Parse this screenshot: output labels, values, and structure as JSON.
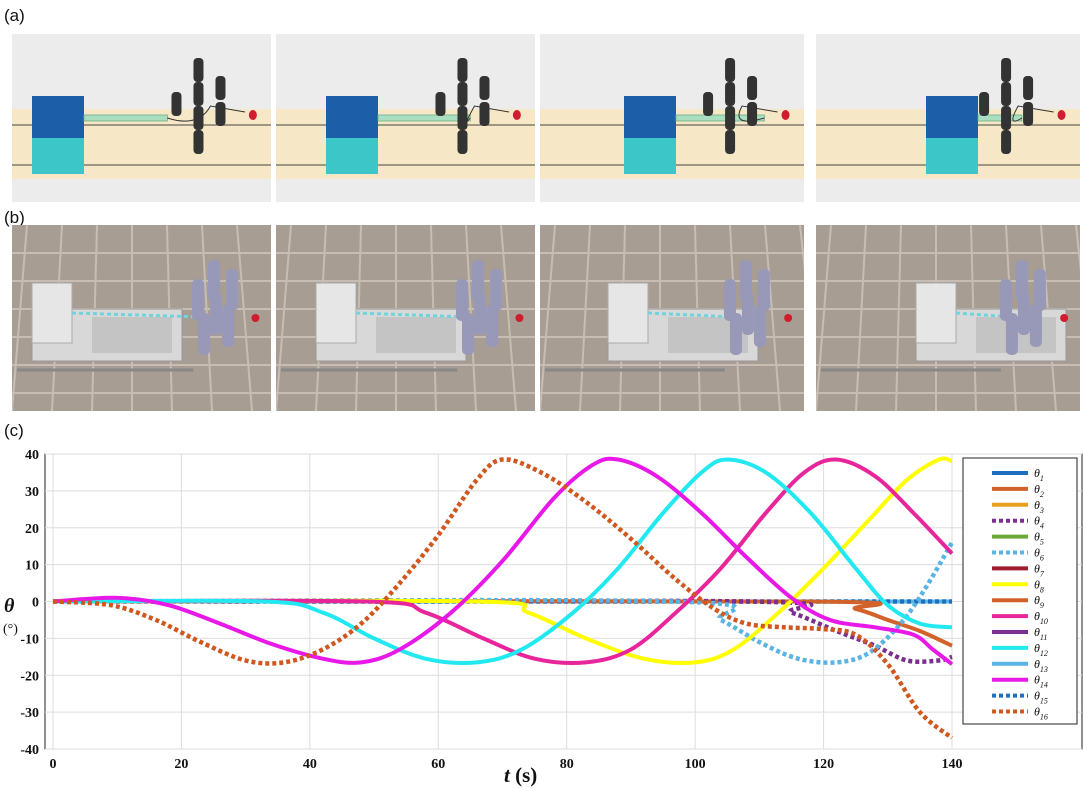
{
  "panels": {
    "a": "(a)",
    "b": "(b)",
    "c": "(c)"
  },
  "colors": {
    "sand": "#f6e7c6",
    "block_blue": "#1c5fa8",
    "block_cyan": "#3cc6c8",
    "pillar": "#333333",
    "ball": "#d01c2c",
    "segment_green": "#a9dfc0",
    "floor": "#a89d93"
  },
  "chart_data": {
    "type": "line",
    "title": "",
    "xlabel": "t (s)",
    "ylabel": "θ",
    "yunit": "(°)",
    "xlim": [
      0,
      155
    ],
    "ylim": [
      -40,
      40
    ],
    "xticks": [
      0,
      20,
      40,
      60,
      80,
      100,
      120,
      140
    ],
    "yticks": [
      40,
      30,
      20,
      10,
      0,
      -10,
      -20,
      -30,
      -40
    ],
    "grid": true,
    "legend_position": "right",
    "series": [
      {
        "name": "θ1",
        "color": "#1f6fbf",
        "style": "solid",
        "points": [
          [
            0,
            0
          ],
          [
            140,
            0
          ]
        ]
      },
      {
        "name": "θ2",
        "color": "#d2612a",
        "style": "solid",
        "points": [
          [
            0,
            0
          ],
          [
            118,
            0
          ],
          [
            125,
            -2
          ],
          [
            130,
            -5
          ],
          [
            135,
            -8
          ],
          [
            140,
            -12
          ]
        ]
      },
      {
        "name": "θ3",
        "color": "#e8a020",
        "style": "solid",
        "points": [
          [
            0,
            0
          ],
          [
            140,
            0
          ]
        ]
      },
      {
        "name": "θ4",
        "color": "#7b2f8f",
        "style": "dotted",
        "points": [
          [
            0,
            0
          ],
          [
            108,
            0
          ],
          [
            115,
            -3
          ],
          [
            122,
            -8
          ],
          [
            128,
            -12
          ],
          [
            133,
            -16
          ],
          [
            138,
            -16
          ],
          [
            140,
            -15
          ]
        ]
      },
      {
        "name": "θ5",
        "color": "#6aa83a",
        "style": "solid",
        "points": [
          [
            0,
            0
          ],
          [
            140,
            0
          ]
        ]
      },
      {
        "name": "θ6",
        "color": "#5ab4e4",
        "style": "dotted",
        "points": [
          [
            0,
            0
          ],
          [
            97,
            0
          ],
          [
            104,
            -5
          ],
          [
            110,
            -11
          ],
          [
            116,
            -15.5
          ],
          [
            122,
            -16.5
          ],
          [
            127,
            -14
          ],
          [
            132,
            -6
          ],
          [
            136,
            4
          ],
          [
            140,
            16
          ]
        ]
      },
      {
        "name": "θ7",
        "color": "#a01c2c",
        "style": "solid",
        "points": [
          [
            0,
            0
          ],
          [
            140,
            0
          ]
        ]
      },
      {
        "name": "θ8",
        "color": "#ffff00",
        "style": "solid",
        "points": [
          [
            0,
            0
          ],
          [
            66,
            0
          ],
          [
            74,
            -3
          ],
          [
            83,
            -10
          ],
          [
            92,
            -15.5
          ],
          [
            100,
            -16.5
          ],
          [
            106,
            -13
          ],
          [
            113,
            -3
          ],
          [
            120,
            9
          ],
          [
            127,
            22
          ],
          [
            133,
            33
          ],
          [
            138,
            38.5
          ],
          [
            140,
            38
          ]
        ]
      },
      {
        "name": "θ9",
        "color": "#d2612a",
        "style": "solid",
        "points": [
          [
            0,
            0
          ],
          [
            140,
            0
          ]
        ]
      },
      {
        "name": "θ10",
        "color": "#e8259a",
        "style": "solid",
        "points": [
          [
            0,
            0
          ],
          [
            49,
            0
          ],
          [
            58,
            -3
          ],
          [
            67,
            -10
          ],
          [
            75,
            -15.5
          ],
          [
            83,
            -16.5
          ],
          [
            90,
            -13
          ],
          [
            97,
            -3
          ],
          [
            104,
            9
          ],
          [
            111,
            24
          ],
          [
            117,
            35
          ],
          [
            122,
            38.5
          ],
          [
            128,
            34
          ],
          [
            134,
            24
          ],
          [
            140,
            13
          ]
        ]
      },
      {
        "name": "θ11",
        "color": "#7b2f8f",
        "style": "solid",
        "points": [
          [
            0,
            0
          ],
          [
            140,
            0
          ]
        ]
      },
      {
        "name": "θ12",
        "color": "#22e8f0",
        "style": "solid",
        "points": [
          [
            0,
            0
          ],
          [
            33,
            0
          ],
          [
            42,
            -3
          ],
          [
            50,
            -10
          ],
          [
            58,
            -15.5
          ],
          [
            66,
            -16.5
          ],
          [
            73,
            -13
          ],
          [
            81,
            -3
          ],
          [
            88,
            9
          ],
          [
            95,
            24
          ],
          [
            101,
            35
          ],
          [
            105,
            38.5
          ],
          [
            111,
            35
          ],
          [
            118,
            24
          ],
          [
            125,
            9
          ],
          [
            130,
            -1
          ],
          [
            135,
            -6
          ],
          [
            140,
            -7
          ]
        ]
      },
      {
        "name": "θ13",
        "color": "#5ab4e4",
        "style": "solid",
        "points": [
          [
            0,
            0
          ],
          [
            140,
            0
          ]
        ]
      },
      {
        "name": "θ14",
        "color": "#e818e8",
        "style": "solid",
        "points": [
          [
            0,
            0
          ],
          [
            10,
            1
          ],
          [
            18,
            -1
          ],
          [
            26,
            -6
          ],
          [
            34,
            -11.5
          ],
          [
            42,
            -15.5
          ],
          [
            48,
            -16.5
          ],
          [
            54,
            -13
          ],
          [
            62,
            -3
          ],
          [
            70,
            11
          ],
          [
            78,
            28
          ],
          [
            84,
            37
          ],
          [
            88,
            38.5
          ],
          [
            94,
            34
          ],
          [
            101,
            24
          ],
          [
            108,
            12
          ],
          [
            115,
            1
          ],
          [
            121,
            -5
          ],
          [
            128,
            -7
          ],
          [
            134,
            -9
          ],
          [
            137,
            -13
          ],
          [
            140,
            -17
          ]
        ]
      },
      {
        "name": "θ15",
        "color": "#1f6fbf",
        "style": "dotted",
        "points": [
          [
            0,
            0
          ],
          [
            140,
            0
          ]
        ]
      },
      {
        "name": "θ16",
        "color": "#d0581e",
        "style": "dotted",
        "points": [
          [
            0,
            0
          ],
          [
            9,
            -1
          ],
          [
            16,
            -5
          ],
          [
            23,
            -11
          ],
          [
            30,
            -16
          ],
          [
            36,
            -16.5
          ],
          [
            42,
            -13
          ],
          [
            48,
            -6
          ],
          [
            54,
            5
          ],
          [
            60,
            18
          ],
          [
            66,
            33
          ],
          [
            70,
            38.5
          ],
          [
            76,
            35
          ],
          [
            83,
            27
          ],
          [
            90,
            17
          ],
          [
            97,
            6
          ],
          [
            103,
            -2
          ],
          [
            108,
            -6
          ],
          [
            114,
            -7
          ],
          [
            120,
            -7.5
          ],
          [
            125,
            -9
          ],
          [
            130,
            -17
          ],
          [
            135,
            -30
          ],
          [
            140,
            -37
          ]
        ]
      }
    ]
  }
}
